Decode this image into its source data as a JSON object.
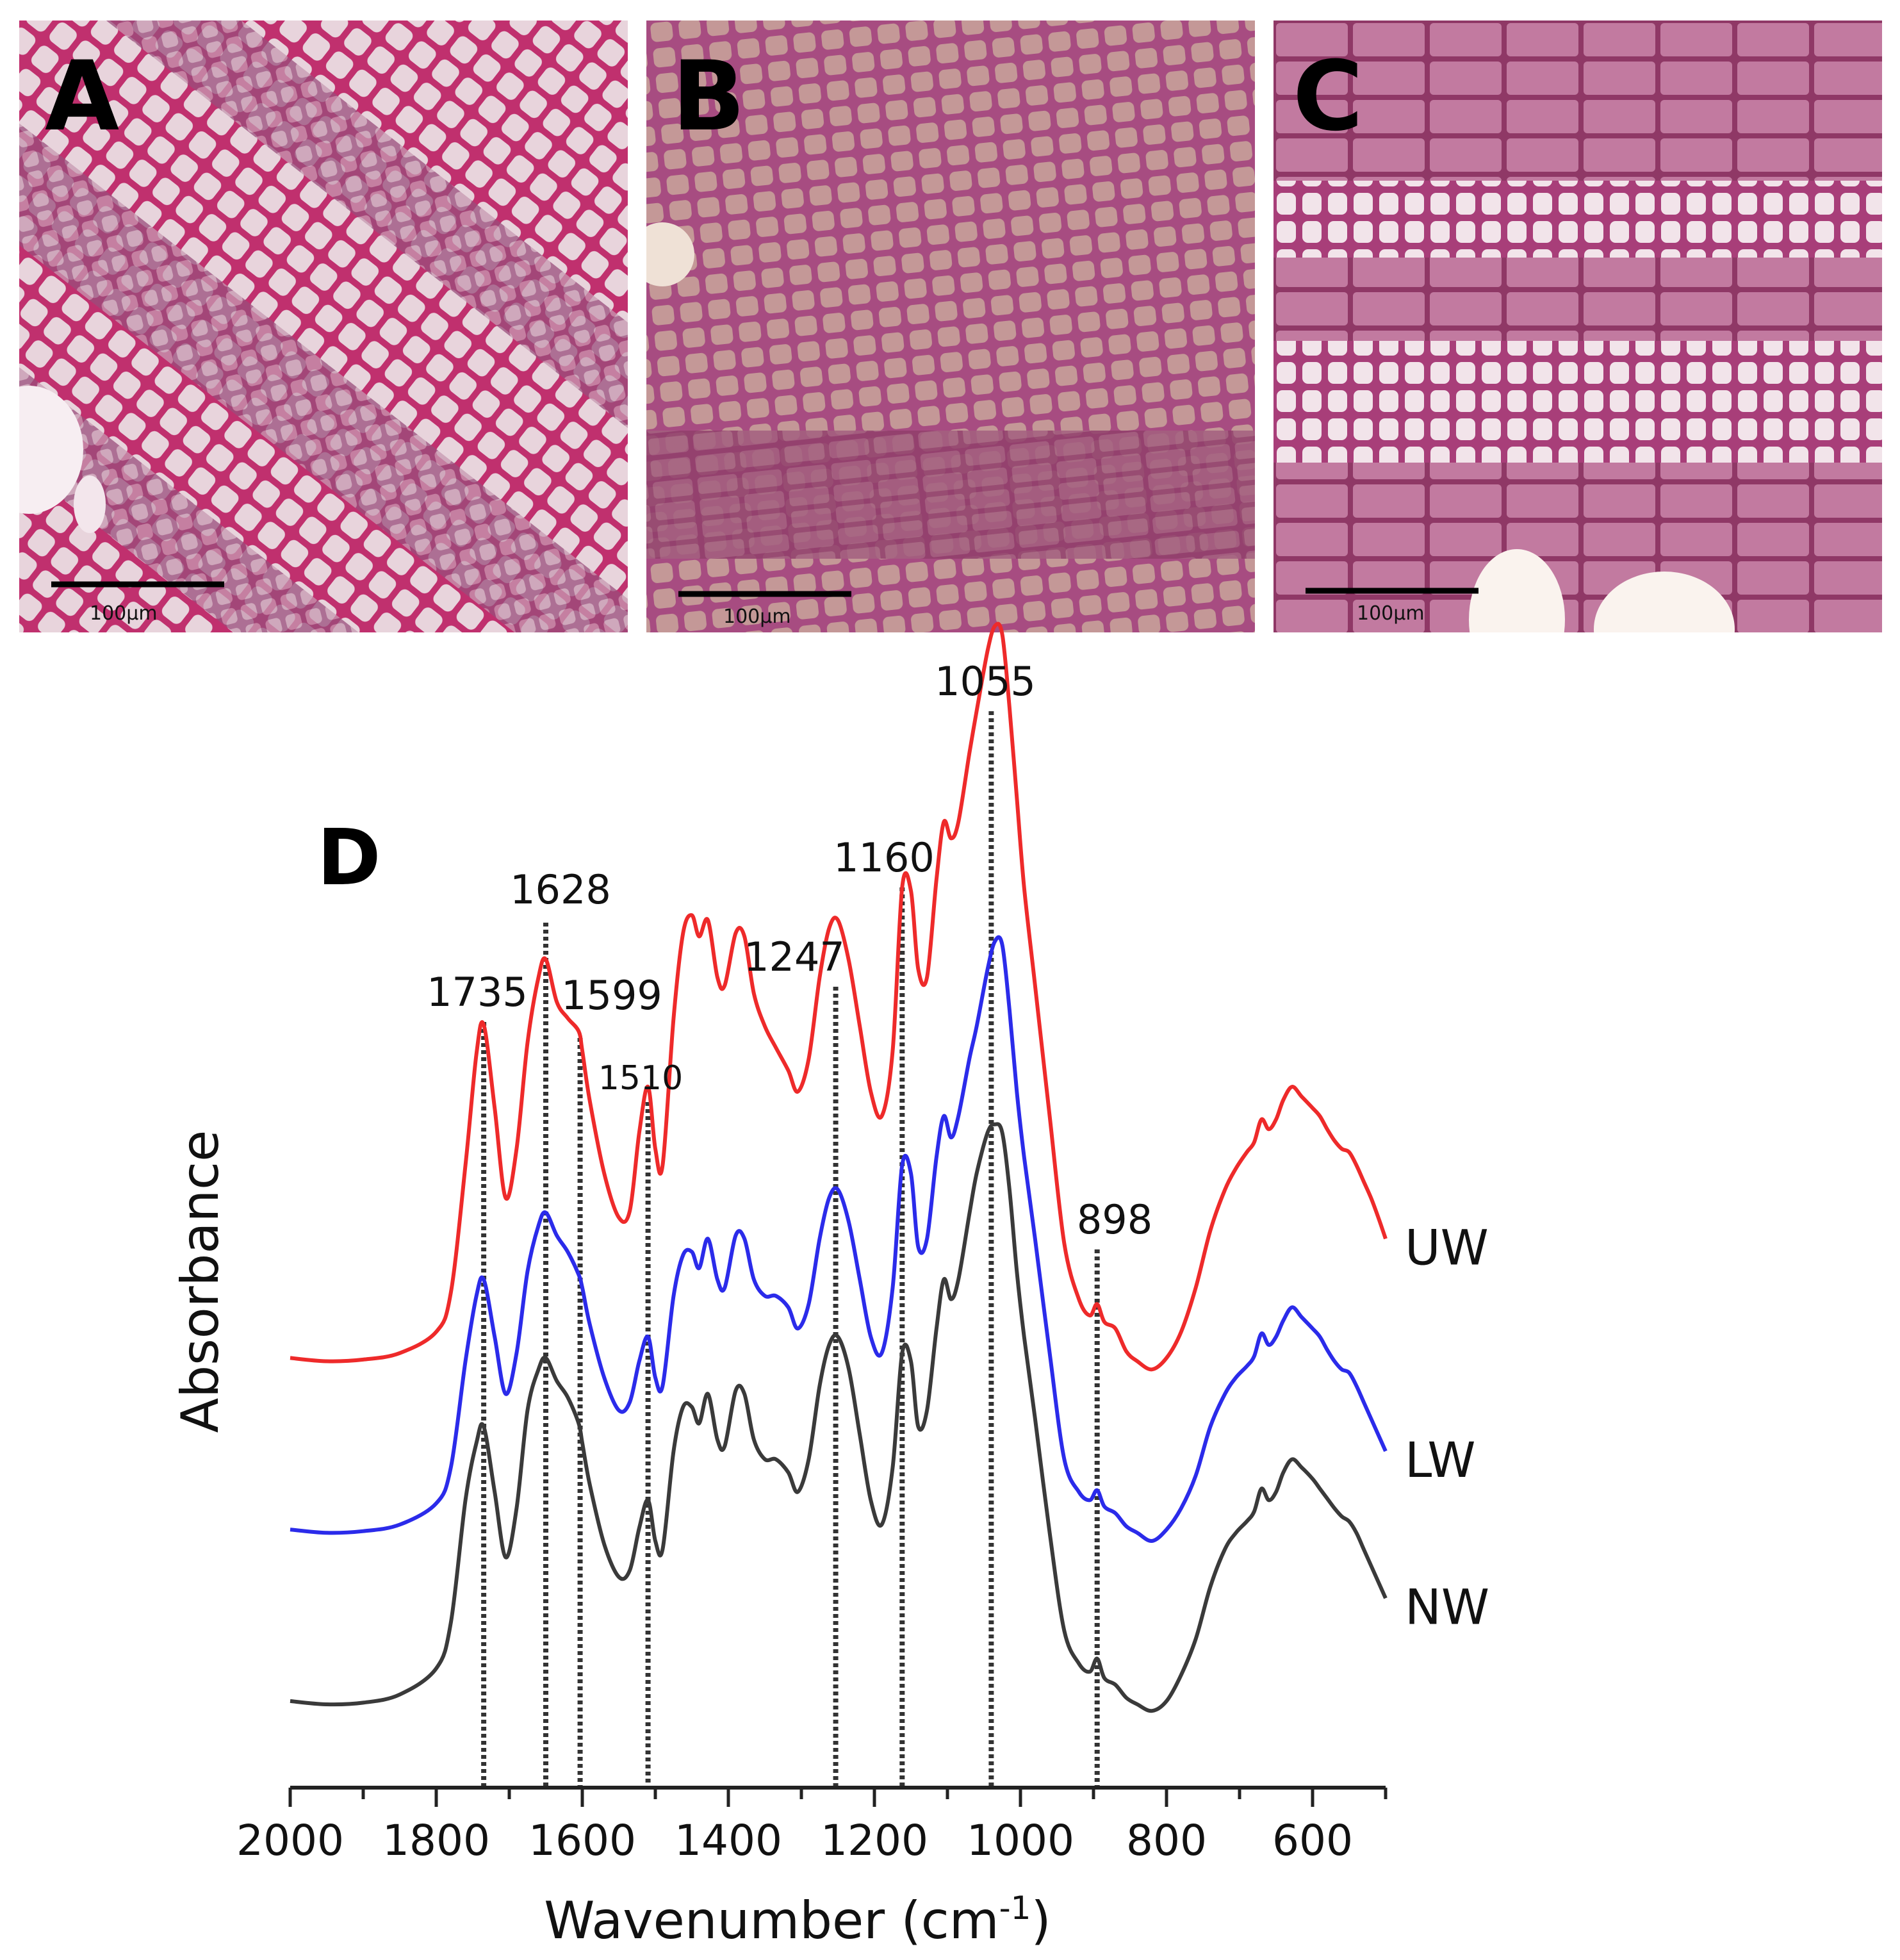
{
  "panels": [
    {
      "letter": "A",
      "scale_bar": "100μm"
    },
    {
      "letter": "B",
      "scale_bar": "100μm"
    },
    {
      "letter": "C",
      "scale_bar": "100μm"
    }
  ],
  "chart_panel_letter": "D",
  "colors": {
    "UW": "#ee2a2a",
    "LW": "#2b2bea",
    "NW": "#3a3a3a",
    "stain": "#c0306e",
    "tissue": "#9a4e7c"
  },
  "chart_data": {
    "type": "line",
    "xlabel": "Wavenumber (cm",
    "xlabel_sup": "-1",
    "xlabel_close": ")",
    "ylabel": "Absorbance",
    "xlim": [
      2000,
      500
    ],
    "x_reversed": true,
    "x_ticks": [
      2000,
      1800,
      1600,
      1400,
      1200,
      1000,
      800,
      600
    ],
    "peaks": [
      {
        "label": "1735",
        "x": 1735
      },
      {
        "label": "1628",
        "x": 1650
      },
      {
        "label": "1599",
        "x": 1603
      },
      {
        "label": "1510",
        "x": 1510
      },
      {
        "label": "1247",
        "x": 1253
      },
      {
        "label": "1160",
        "x": 1162
      },
      {
        "label": "1055",
        "x": 1040
      },
      {
        "label": "898",
        "x": 895
      }
    ],
    "series": [
      {
        "name": "UW",
        "offset": 2.1,
        "x": [
          2000,
          1950,
          1900,
          1850,
          1800,
          1780,
          1760,
          1745,
          1735,
          1720,
          1705,
          1690,
          1675,
          1660,
          1650,
          1635,
          1620,
          1605,
          1600,
          1590,
          1570,
          1550,
          1535,
          1522,
          1510,
          1500,
          1490,
          1475,
          1462,
          1450,
          1440,
          1428,
          1415,
          1405,
          1390,
          1378,
          1365,
          1350,
          1335,
          1318,
          1305,
          1290,
          1275,
          1262,
          1250,
          1235,
          1220,
          1205,
          1190,
          1175,
          1162,
          1150,
          1140,
          1128,
          1115,
          1105,
          1095,
          1085,
          1070,
          1060,
          1045,
          1035,
          1025,
          1015,
          1005,
          995,
          980,
          960,
          940,
          920,
          905,
          895,
          885,
          870,
          855,
          840,
          820,
          800,
          780,
          760,
          740,
          720,
          705,
          690,
          680,
          670,
          660,
          650,
          640,
          628,
          615,
          600,
          590,
          580,
          570,
          560,
          550,
          540,
          530,
          520,
          510,
          500
        ],
        "y": [
          0.02,
          0.0,
          0.01,
          0.05,
          0.18,
          0.42,
          1.2,
          1.88,
          2.06,
          1.55,
          1.0,
          1.3,
          1.95,
          2.35,
          2.46,
          2.2,
          2.1,
          2.02,
          1.9,
          1.6,
          1.15,
          0.88,
          0.92,
          1.4,
          1.68,
          1.3,
          1.2,
          2.1,
          2.62,
          2.73,
          2.6,
          2.7,
          2.35,
          2.3,
          2.62,
          2.6,
          2.25,
          2.05,
          1.92,
          1.78,
          1.65,
          1.85,
          2.35,
          2.65,
          2.7,
          2.45,
          2.05,
          1.65,
          1.5,
          1.9,
          2.9,
          2.88,
          2.4,
          2.35,
          2.95,
          3.3,
          3.2,
          3.3,
          3.72,
          3.98,
          4.35,
          4.5,
          4.45,
          4.0,
          3.45,
          2.9,
          2.3,
          1.5,
          0.72,
          0.38,
          0.28,
          0.35,
          0.24,
          0.2,
          0.06,
          0.0,
          -0.05,
          0.02,
          0.18,
          0.45,
          0.8,
          1.05,
          1.18,
          1.28,
          1.34,
          1.48,
          1.42,
          1.48,
          1.6,
          1.68,
          1.62,
          1.55,
          1.5,
          1.42,
          1.35,
          1.3,
          1.28,
          1.2,
          1.1,
          1.0,
          0.88,
          0.75
        ]
      },
      {
        "name": "LW",
        "offset": 1.05,
        "x": [
          2000,
          1950,
          1900,
          1850,
          1800,
          1780,
          1760,
          1745,
          1735,
          1720,
          1705,
          1690,
          1675,
          1660,
          1650,
          1635,
          1620,
          1605,
          1600,
          1590,
          1570,
          1550,
          1535,
          1522,
          1510,
          1500,
          1490,
          1475,
          1462,
          1450,
          1440,
          1428,
          1415,
          1405,
          1390,
          1378,
          1365,
          1350,
          1335,
          1318,
          1305,
          1290,
          1275,
          1262,
          1250,
          1235,
          1220,
          1205,
          1190,
          1175,
          1162,
          1150,
          1140,
          1128,
          1115,
          1105,
          1095,
          1085,
          1070,
          1060,
          1045,
          1035,
          1025,
          1015,
          1005,
          995,
          980,
          960,
          940,
          920,
          905,
          895,
          885,
          870,
          855,
          840,
          820,
          800,
          780,
          760,
          740,
          720,
          705,
          690,
          680,
          670,
          660,
          650,
          640,
          628,
          615,
          600,
          590,
          580,
          570,
          560,
          550,
          540,
          530,
          520,
          510,
          500
        ],
        "y": [
          0.02,
          0.0,
          0.01,
          0.05,
          0.18,
          0.4,
          1.05,
          1.45,
          1.55,
          1.2,
          0.85,
          1.1,
          1.6,
          1.88,
          1.96,
          1.82,
          1.72,
          1.58,
          1.5,
          1.28,
          0.95,
          0.75,
          0.8,
          1.05,
          1.2,
          0.95,
          0.9,
          1.45,
          1.7,
          1.72,
          1.62,
          1.8,
          1.55,
          1.5,
          1.82,
          1.8,
          1.55,
          1.45,
          1.45,
          1.38,
          1.25,
          1.4,
          1.8,
          2.05,
          2.1,
          1.9,
          1.55,
          1.2,
          1.1,
          1.5,
          2.25,
          2.2,
          1.75,
          1.8,
          2.3,
          2.55,
          2.42,
          2.55,
          2.9,
          3.1,
          3.45,
          3.62,
          3.6,
          3.2,
          2.7,
          2.3,
          1.8,
          1.1,
          0.45,
          0.25,
          0.2,
          0.26,
          0.16,
          0.12,
          0.04,
          0.0,
          -0.05,
          0.02,
          0.15,
          0.35,
          0.65,
          0.85,
          0.95,
          1.02,
          1.08,
          1.22,
          1.15,
          1.2,
          1.3,
          1.38,
          1.32,
          1.25,
          1.2,
          1.12,
          1.05,
          1.0,
          0.98,
          0.9,
          0.8,
          0.7,
          0.6,
          0.5
        ]
      },
      {
        "name": "NW",
        "offset": 0.0,
        "x": [
          2000,
          1950,
          1900,
          1850,
          1800,
          1780,
          1760,
          1745,
          1735,
          1720,
          1705,
          1690,
          1675,
          1660,
          1650,
          1635,
          1620,
          1605,
          1600,
          1590,
          1570,
          1550,
          1535,
          1522,
          1510,
          1500,
          1490,
          1475,
          1462,
          1450,
          1440,
          1428,
          1415,
          1405,
          1390,
          1378,
          1365,
          1350,
          1335,
          1318,
          1305,
          1290,
          1275,
          1262,
          1250,
          1235,
          1220,
          1205,
          1190,
          1175,
          1162,
          1150,
          1140,
          1128,
          1115,
          1105,
          1095,
          1085,
          1070,
          1060,
          1045,
          1035,
          1025,
          1015,
          1005,
          995,
          980,
          960,
          940,
          920,
          905,
          895,
          885,
          870,
          855,
          840,
          820,
          800,
          780,
          760,
          740,
          720,
          705,
          690,
          680,
          670,
          660,
          650,
          640,
          628,
          615,
          600,
          590,
          580,
          570,
          560,
          550,
          540,
          530,
          520,
          510,
          500
        ],
        "y": [
          0.02,
          0.0,
          0.01,
          0.06,
          0.22,
          0.5,
          1.25,
          1.6,
          1.7,
          1.3,
          0.9,
          1.2,
          1.8,
          2.05,
          2.12,
          1.98,
          1.88,
          1.72,
          1.6,
          1.35,
          0.98,
          0.78,
          0.82,
          1.08,
          1.25,
          1.0,
          0.95,
          1.55,
          1.82,
          1.82,
          1.72,
          1.9,
          1.62,
          1.58,
          1.92,
          1.9,
          1.62,
          1.5,
          1.5,
          1.42,
          1.3,
          1.5,
          1.95,
          2.2,
          2.25,
          2.05,
          1.65,
          1.25,
          1.1,
          1.45,
          2.15,
          2.1,
          1.7,
          1.8,
          2.3,
          2.6,
          2.48,
          2.6,
          3.0,
          3.25,
          3.5,
          3.55,
          3.5,
          3.15,
          2.65,
          2.25,
          1.75,
          1.05,
          0.45,
          0.25,
          0.2,
          0.28,
          0.16,
          0.12,
          0.04,
          0.0,
          -0.04,
          0.02,
          0.18,
          0.4,
          0.72,
          0.95,
          1.05,
          1.12,
          1.18,
          1.32,
          1.25,
          1.3,
          1.42,
          1.5,
          1.45,
          1.38,
          1.32,
          1.26,
          1.2,
          1.15,
          1.12,
          1.05,
          0.95,
          0.85,
          0.75,
          0.65
        ]
      }
    ]
  }
}
